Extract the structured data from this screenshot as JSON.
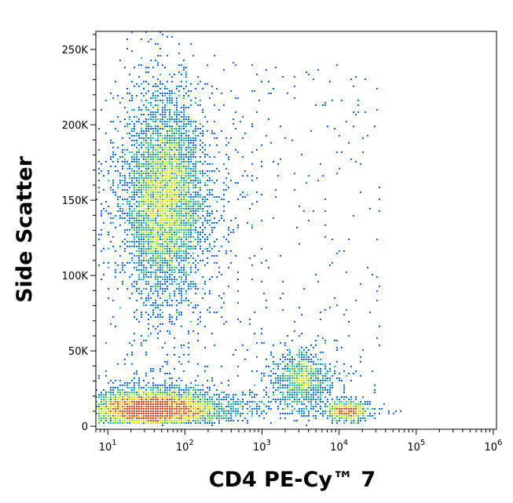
{
  "chart_data": {
    "type": "scatter",
    "subtype": "flow-cytometry-density-dot-plot",
    "title": "",
    "xlabel": "CD4 PE-Cy™ 7",
    "ylabel": "Side Scatter",
    "x_scale": "log",
    "xlim": [
      7,
      1100000
    ],
    "ylim": [
      -2000,
      262000
    ],
    "x_ticks": [
      {
        "value": 10,
        "base": "10",
        "exp": "1"
      },
      {
        "value": 100,
        "base": "10",
        "exp": "2"
      },
      {
        "value": 1000,
        "base": "10",
        "exp": "3"
      },
      {
        "value": 10000,
        "base": "10",
        "exp": "4"
      },
      {
        "value": 100000,
        "base": "10",
        "exp": "5"
      },
      {
        "value": 1000000,
        "base": "10",
        "exp": "6"
      }
    ],
    "y_ticks": [
      {
        "value": 0,
        "label": "0"
      },
      {
        "value": 50000,
        "label": "50K"
      },
      {
        "value": 100000,
        "label": "100K"
      },
      {
        "value": 150000,
        "label": "150K"
      },
      {
        "value": 200000,
        "label": "200K"
      },
      {
        "value": 250000,
        "label": "250K"
      }
    ],
    "grid": false,
    "legend": "none",
    "colormap": [
      "#0000cc",
      "#0066ff",
      "#00cccc",
      "#33cc33",
      "#ccff00",
      "#ffcc00",
      "#ff3300"
    ],
    "populations": [
      {
        "name": "lymphocytes",
        "x_center": 40,
        "x_spread_log10": 0.38,
        "y_center": 11000,
        "y_spread": 5500,
        "n": 6500
      },
      {
        "name": "granulocytes",
        "x_center": 55,
        "x_spread_log10": 0.24,
        "y_center": 150000,
        "y_spread": 30000,
        "n": 5500
      },
      {
        "name": "monocytes",
        "x_center": 3200,
        "x_spread_log10": 0.17,
        "y_center": 31000,
        "y_spread": 8500,
        "n": 900
      },
      {
        "name": "cd4_t_cells",
        "x_center": 13000,
        "x_spread_log10": 0.12,
        "y_center": 9500,
        "y_spread": 2800,
        "n": 800
      }
    ]
  }
}
